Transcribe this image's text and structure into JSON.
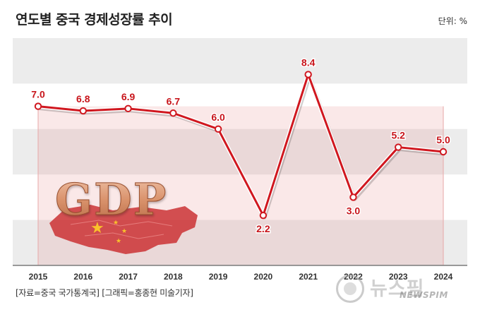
{
  "header": {
    "title": "연도별 중국 경제성장률 추이",
    "unit": "단위: %"
  },
  "footer": {
    "source": "[자료=중국 국가통계국] [그래픽=홍종현 미술기자]"
  },
  "watermark": {
    "korean": "뉴스핌",
    "english": "NEWSPIM"
  },
  "decoration": {
    "gdp_text": "GDP"
  },
  "colors": {
    "line": "#d0171f",
    "label": "#c8151b",
    "band": "#ececec",
    "area": "rgba(226,110,110,0.16)"
  },
  "chart_data": {
    "type": "line",
    "title": "연도별 중국 경제성장률 추이",
    "xlabel": "",
    "ylabel": "",
    "unit": "%",
    "ylim": [
      0,
      10
    ],
    "grid": "alternating horizontal bands",
    "categories": [
      "2015",
      "2016",
      "2017",
      "2018",
      "2019",
      "2020",
      "2021",
      "2022",
      "2023",
      "2024"
    ],
    "series": [
      {
        "name": "경제성장률",
        "values": [
          7.0,
          6.8,
          6.9,
          6.7,
          6.0,
          2.2,
          8.4,
          3.0,
          5.2,
          5.0
        ],
        "labels": [
          "7.0",
          "6.8",
          "6.9",
          "6.7",
          "6.0",
          "2.2",
          "8.4",
          "3.0",
          "5.2",
          "5.0"
        ]
      }
    ]
  }
}
